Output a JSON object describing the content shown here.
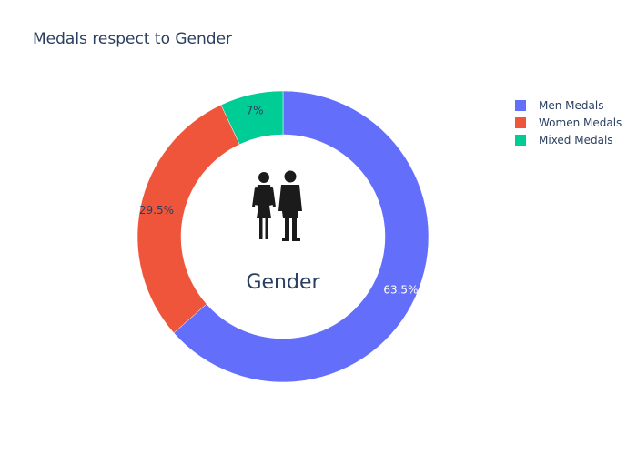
{
  "chart_data": {
    "type": "pie",
    "title": "Medals respect to Gender",
    "center_label": "Gender",
    "center_icon": "people-silhouette-icon",
    "hole": 0.7,
    "legend_position": "top-right",
    "slices": [
      {
        "label": "Men Medals",
        "value": 63.5,
        "text": "63.5%",
        "color": "#636efa",
        "text_color": "#ffffff"
      },
      {
        "label": "Women Medals",
        "value": 29.5,
        "text": "29.5%",
        "color": "#ef553b",
        "text_color": "#2a3f5f"
      },
      {
        "label": "Mixed Medals",
        "value": 7,
        "text": "7%",
        "color": "#00cc96",
        "text_color": "#2a3f5f"
      }
    ]
  }
}
